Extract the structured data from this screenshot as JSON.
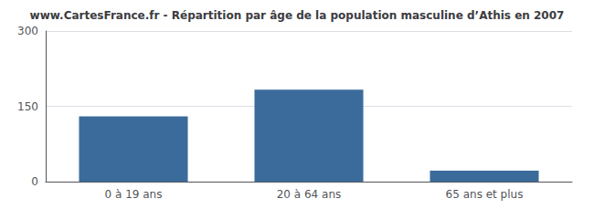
{
  "chart_data": {
    "type": "bar",
    "title": "www.CartesFrance.fr - Répartition par âge de la population masculine d’Athis en 2007",
    "categories": [
      "0 à 19 ans",
      "20 à 64 ans",
      "65 ans et plus"
    ],
    "values": [
      130,
      183,
      22
    ],
    "color": "#3a6b9b",
    "ylim": [
      0,
      300
    ],
    "yticks": [
      0,
      150,
      300
    ],
    "grid": true
  }
}
